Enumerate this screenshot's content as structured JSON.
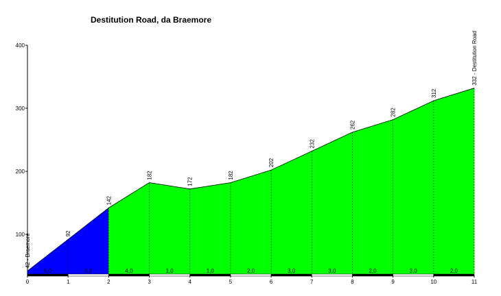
{
  "chart_data": {
    "type": "area",
    "title": "Destitution Road, da Braemore",
    "xlabel": "",
    "ylabel": "",
    "xlim": [
      0,
      11
    ],
    "ylim": [
      37,
      400
    ],
    "x_ticks": [
      0,
      1,
      2,
      3,
      4,
      5,
      6,
      7,
      8,
      9,
      10,
      11
    ],
    "y_ticks": [
      100,
      200,
      300,
      400
    ],
    "x": [
      0,
      1,
      2,
      3,
      4,
      5,
      6,
      7,
      8,
      9,
      10,
      11
    ],
    "elevation": [
      42,
      92,
      142,
      182,
      172,
      182,
      202,
      232,
      262,
      282,
      312,
      332
    ],
    "point_labels": [
      "42 - Braemore",
      "92",
      "142",
      "182",
      "172",
      "182",
      "202",
      "232",
      "262",
      "282",
      "312",
      "332 - Destitution Road"
    ],
    "segment_gradients": [
      "5,0",
      "5,0",
      "4,0",
      "1,0",
      "1,0",
      "2,0",
      "3,0",
      "3,0",
      "2,0",
      "3,0",
      "2,0"
    ],
    "segment_colors": [
      "#0000ff",
      "#0000ff",
      "#00ff00",
      "#00ff00",
      "#00ff00",
      "#00ff00",
      "#00ff00",
      "#00ff00",
      "#00ff00",
      "#00ff00",
      "#00ff00"
    ],
    "grid": false,
    "legend": "none"
  }
}
